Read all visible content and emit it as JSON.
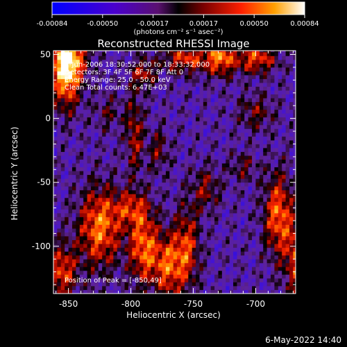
{
  "chart_data": {
    "type": "heatmap",
    "title": "Reconstructed RHESSI Image",
    "xlabel": "Heliocentric X (arcsec)",
    "ylabel": "Heliocentric Y (arcsec)",
    "xlim": [
      -862,
      -668
    ],
    "ylim": [
      -137,
      53
    ],
    "xticks": [
      -850,
      -800,
      -750,
      -700
    ],
    "yticks": [
      -100,
      -50,
      0,
      50
    ],
    "colorbar": {
      "colormap": "hot-with-blue",
      "range": [
        -0.00084,
        0.00084
      ],
      "ticks": [
        "-0.00084",
        "-0.00050",
        "-0.00017",
        "0.00017",
        "0.00050",
        "0.00084"
      ],
      "unit_label": "(photons cm⁻² s⁻¹ asec⁻²)"
    },
    "annotations": [
      "7-Jun-2006 18:30:52.000 to 18:33:32.000",
      "Detectors: 3F 4F 5F 6F 7F 8F  Att 0",
      "Energy Range: 25.0 - 50.0 keV",
      "Clean     Total counts: 6.47E+03"
    ],
    "peak_annotation": "Position of Peak = [-850,49]",
    "peak": {
      "x": -850,
      "y": 49
    },
    "grid": false
  },
  "footer": {
    "date": "6-May-2022 14:40"
  }
}
